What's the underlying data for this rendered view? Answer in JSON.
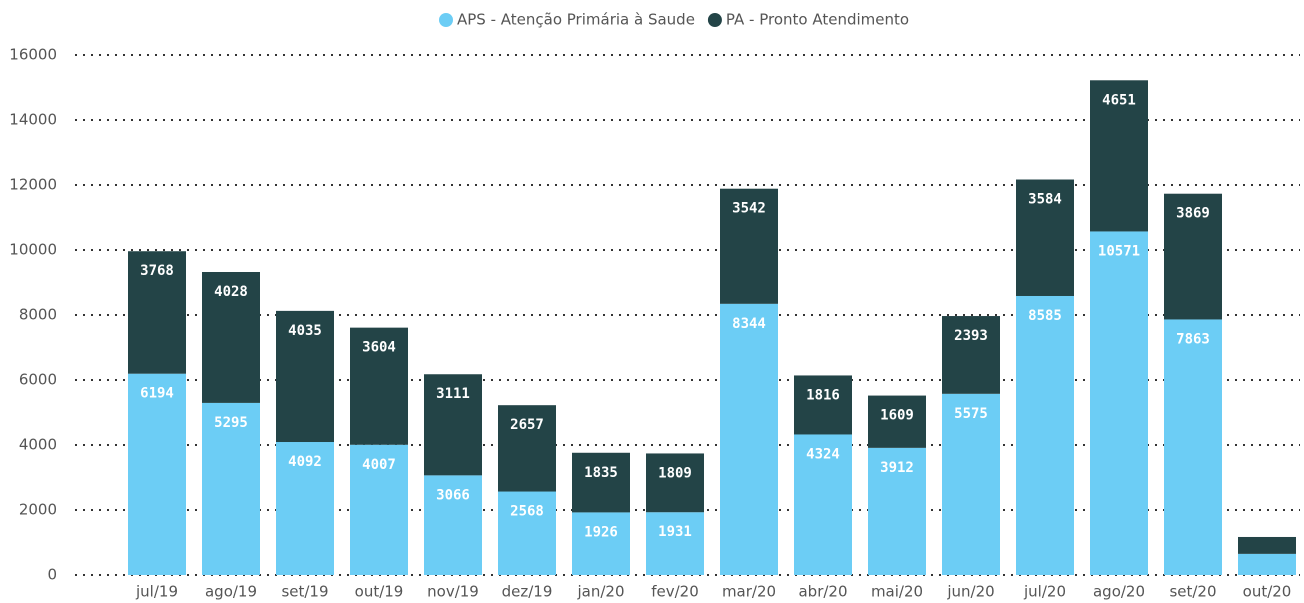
{
  "chart_data": {
    "type": "stacked_bar",
    "categories": [
      "jul/19",
      "ago/19",
      "set/19",
      "out/19",
      "nov/19",
      "dez/19",
      "jan/20",
      "fev/20",
      "mar/20",
      "abr/20",
      "mai/20",
      "jun/20",
      "jul/20",
      "ago/20",
      "set/20",
      "out/20"
    ],
    "series": [
      {
        "name": "APS - Atenção Primária à Saude",
        "color": "#6ccdf5",
        "values": [
          6194,
          5295,
          4092,
          4007,
          3066,
          2568,
          1926,
          1931,
          8344,
          4324,
          3912,
          5575,
          8585,
          10571,
          7863,
          650
        ]
      },
      {
        "name": "PA - Pronto Atendimento",
        "color": "#234447",
        "values": [
          3768,
          4028,
          4035,
          3604,
          3111,
          2657,
          1835,
          1809,
          3542,
          1816,
          1609,
          2393,
          3584,
          4651,
          3869,
          520
        ]
      }
    ],
    "ylim": [
      0,
      16000
    ],
    "yticks": [
      0,
      2000,
      4000,
      6000,
      8000,
      10000,
      12000,
      14000,
      16000
    ],
    "grid": true
  }
}
